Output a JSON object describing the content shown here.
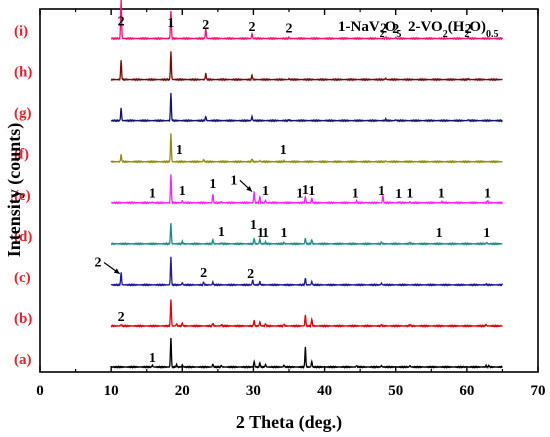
{
  "chart_data": {
    "type": "line",
    "title": "",
    "xlabel": "2 Theta (deg.)",
    "ylabel": "Intensity (counts)",
    "xlim": [
      0,
      70
    ],
    "xticks": [
      0,
      10,
      20,
      30,
      40,
      50,
      60,
      70
    ],
    "yticks": [],
    "grid": false,
    "legend": {
      "placement": "top-right",
      "entries": [
        {
          "number": "1",
          "formula": "NaV2O5",
          "parts": [
            [
              "-NaV",
              ""
            ],
            [
              "2",
              "sub"
            ],
            [
              "O",
              ""
            ],
            [
              "5",
              "sub"
            ]
          ]
        },
        {
          "number": "2",
          "formula": "VO2(H2O)0.5",
          "parts": [
            [
              "-VO",
              ""
            ],
            [
              "2",
              "sub"
            ],
            [
              "(H",
              ""
            ],
            [
              "2",
              "sub"
            ],
            [
              "O)",
              ""
            ],
            [
              "0.5",
              "sub"
            ]
          ]
        }
      ]
    },
    "x_range": [
      10,
      65
    ],
    "series": [
      {
        "label": "(a)",
        "color": "#000000",
        "peaks": [
          [
            15.8,
            0.6
          ],
          [
            18.4,
            10.5
          ],
          [
            19.2,
            0.8
          ],
          [
            20.0,
            0.8
          ],
          [
            24.3,
            1.0
          ],
          [
            25.5,
            0.5
          ],
          [
            30.1,
            2.0
          ],
          [
            30.9,
            1.5
          ],
          [
            31.7,
            0.9
          ],
          [
            34.3,
            0.7
          ],
          [
            37.3,
            7.0
          ],
          [
            38.2,
            2.0
          ],
          [
            44.5,
            0.5
          ],
          [
            48.0,
            0.5
          ],
          [
            52.0,
            0.5
          ],
          [
            62.7,
            0.5
          ],
          [
            63.1,
            0.5
          ]
        ]
      },
      {
        "label": "(b)",
        "color": "#e8000b",
        "peaks": [
          [
            11.4,
            0.5
          ],
          [
            18.4,
            9.5
          ],
          [
            19.2,
            0.8
          ],
          [
            20.0,
            1.0
          ],
          [
            24.3,
            1.0
          ],
          [
            25.5,
            0.4
          ],
          [
            30.1,
            2.0
          ],
          [
            30.9,
            1.5
          ],
          [
            31.7,
            0.8
          ],
          [
            34.3,
            0.6
          ],
          [
            37.3,
            4.0
          ],
          [
            38.2,
            2.5
          ],
          [
            48.0,
            0.4
          ],
          [
            52.0,
            0.4
          ],
          [
            62.7,
            0.5
          ]
        ]
      },
      {
        "label": "(c)",
        "color": "#1c1aa0",
        "peaks": [
          [
            11.4,
            4.5
          ],
          [
            18.4,
            10.0
          ],
          [
            20.0,
            0.8
          ],
          [
            23.0,
            1.0
          ],
          [
            24.3,
            1.0
          ],
          [
            29.9,
            1.8
          ],
          [
            30.9,
            1.2
          ],
          [
            37.3,
            2.5
          ],
          [
            38.2,
            1.2
          ],
          [
            48.0,
            0.6
          ],
          [
            62.7,
            0.3
          ]
        ]
      },
      {
        "label": "(d)",
        "color": "#1a8f8a",
        "peaks": [
          [
            18.4,
            7.5
          ],
          [
            20.0,
            0.8
          ],
          [
            24.3,
            1.5
          ],
          [
            25.5,
            0.3
          ],
          [
            30.1,
            2.0
          ],
          [
            30.9,
            1.8
          ],
          [
            31.7,
            0.6
          ],
          [
            34.3,
            0.5
          ],
          [
            37.3,
            2.0
          ],
          [
            38.2,
            1.5
          ],
          [
            48.0,
            0.6
          ],
          [
            52.0,
            0.3
          ],
          [
            62.8,
            0.5
          ]
        ]
      },
      {
        "label": "(e)",
        "color": "#ff22ff",
        "peaks": [
          [
            15.8,
            0.3
          ],
          [
            18.4,
            10.0
          ],
          [
            20.0,
            0.8
          ],
          [
            24.3,
            3.0
          ],
          [
            25.5,
            0.4
          ],
          [
            30.1,
            4.0
          ],
          [
            30.9,
            2.2
          ],
          [
            31.7,
            0.9
          ],
          [
            37.3,
            2.2
          ],
          [
            38.2,
            1.7
          ],
          [
            44.5,
            0.6
          ],
          [
            48.2,
            2.6
          ],
          [
            50.5,
            0.3
          ],
          [
            52.0,
            0.4
          ],
          [
            56.5,
            0.4
          ],
          [
            62.9,
            0.8
          ]
        ]
      },
      {
        "label": "(f)",
        "color": "#8f8f0a",
        "peaks": [
          [
            11.4,
            2.5
          ],
          [
            18.4,
            10.0
          ],
          [
            23.0,
            0.8
          ],
          [
            29.8,
            1.0
          ],
          [
            30.9,
            0.4
          ],
          [
            34.3,
            0.3
          ],
          [
            48.6,
            0.3
          ]
        ]
      },
      {
        "label": "(g)",
        "color": "#141475",
        "peaks": [
          [
            11.4,
            4.5
          ],
          [
            18.4,
            10.0
          ],
          [
            23.3,
            1.5
          ],
          [
            29.8,
            1.5
          ],
          [
            35.0,
            0.3
          ],
          [
            48.6,
            0.5
          ],
          [
            50.0,
            0.3
          ],
          [
            60.2,
            0.3
          ]
        ]
      },
      {
        "label": "(h)",
        "color": "#7a0a0a",
        "peaks": [
          [
            11.4,
            7.0
          ],
          [
            18.4,
            10.0
          ],
          [
            23.3,
            2.2
          ],
          [
            29.8,
            1.6
          ],
          [
            35.0,
            0.3
          ],
          [
            48.6,
            0.5
          ],
          [
            60.2,
            0.3
          ]
        ]
      },
      {
        "label": "(i)",
        "color": "#ff1077",
        "peaks": [
          [
            11.4,
            14.0
          ],
          [
            18.4,
            10.0
          ],
          [
            23.3,
            3.5
          ],
          [
            29.8,
            1.7
          ],
          [
            35.0,
            0.4
          ],
          [
            48.6,
            0.5
          ],
          [
            50.0,
            0.3
          ],
          [
            60.2,
            0.3
          ]
        ]
      }
    ],
    "annotations": [
      {
        "text": "2",
        "x": 11.4,
        "curve": 8,
        "dy": -3.3
      },
      {
        "text": "1",
        "x": 18.4,
        "curve": 8,
        "dy": -2.6
      },
      {
        "text": "2",
        "x": 23.3,
        "curve": 8,
        "dy": -1.9
      },
      {
        "text": "2",
        "x": 29.8,
        "curve": 8,
        "dy": -1.2
      },
      {
        "text": "2",
        "x": 35.0,
        "curve": 8,
        "dy": -0.7
      },
      {
        "text": "2",
        "x": 48.3,
        "curve": 8,
        "dy": -0.7
      },
      {
        "text": "2",
        "x": 50.0,
        "curve": 8,
        "dy": -0.6
      },
      {
        "text": "2",
        "x": 60.2,
        "curve": 8,
        "dy": -0.6
      },
      {
        "text": "1",
        "x": 19.6,
        "curve": 5,
        "dy": -1.3
      },
      {
        "text": "1",
        "x": 34.2,
        "curve": 5,
        "dy": -1.3
      },
      {
        "text": "1",
        "x": 15.8,
        "curve": 4,
        "dy": -0.5
      },
      {
        "text": "1",
        "x": 20.0,
        "curve": 4,
        "dy": -1.3
      },
      {
        "text": "1",
        "x": 24.3,
        "curve": 4,
        "dy": -3.8
      },
      {
        "text": "1",
        "x": 31.7,
        "curve": 4,
        "dy": -1.3
      },
      {
        "text": "1",
        "x": 36.5,
        "curve": 4,
        "dy": -0.5
      },
      {
        "text": "1",
        "x": 37.3,
        "curve": 4,
        "dy": -1.7
      },
      {
        "text": "1",
        "x": 38.2,
        "curve": 4,
        "dy": -1.3
      },
      {
        "text": "1",
        "x": 44.3,
        "curve": 4,
        "dy": -0.5
      },
      {
        "text": "1",
        "x": 48.0,
        "curve": 4,
        "dy": -1.3
      },
      {
        "text": "1",
        "x": 50.4,
        "curve": 4,
        "dy": -0.3
      },
      {
        "text": "1",
        "x": 52.0,
        "curve": 4,
        "dy": -0.5
      },
      {
        "text": "1",
        "x": 56.4,
        "curve": 4,
        "dy": -0.5
      },
      {
        "text": "1",
        "x": 62.9,
        "curve": 4,
        "dy": -0.5
      },
      {
        "text": "1",
        "x": 25.5,
        "curve": 3,
        "dy": -1.3
      },
      {
        "text": "1",
        "x": 30.0,
        "curve": 3,
        "dy": -3.9
      },
      {
        "text": "1",
        "x": 31.0,
        "curve": 3,
        "dy": -1.0
      },
      {
        "text": "1",
        "x": 31.7,
        "curve": 3,
        "dy": -1.0
      },
      {
        "text": "1",
        "x": 34.3,
        "curve": 3,
        "dy": -1.0
      },
      {
        "text": "1",
        "x": 56.1,
        "curve": 3,
        "dy": -1.0
      },
      {
        "text": "1",
        "x": 62.8,
        "curve": 3,
        "dy": -1.0
      },
      {
        "text": "2",
        "x": 23.0,
        "curve": 2,
        "dy": -1.3
      },
      {
        "text": "2",
        "x": 29.6,
        "curve": 2,
        "dy": -1.0
      },
      {
        "text": "2",
        "x": 11.4,
        "curve": 1,
        "dy": -0.3
      },
      {
        "text": "1",
        "x": 15.8,
        "curve": 0,
        "dy": -0.3
      }
    ],
    "arrows": [
      {
        "text": "2",
        "from": [
          9.0,
          2
        ],
        "to": [
          11.2,
          2
        ]
      },
      {
        "text": "1",
        "from": [
          28.1,
          4
        ],
        "to": [
          29.8,
          4
        ]
      }
    ]
  }
}
